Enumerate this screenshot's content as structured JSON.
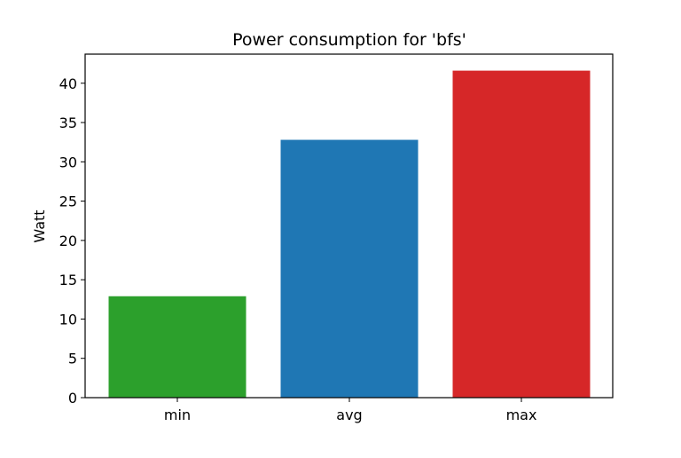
{
  "chart_data": {
    "type": "bar",
    "title": "Power consumption for 'bfs'",
    "xlabel": "",
    "ylabel": "Watt",
    "categories": [
      "min",
      "avg",
      "max"
    ],
    "values": [
      12.9,
      32.8,
      41.6
    ],
    "colors": [
      "#2ca02c",
      "#1f77b4",
      "#d62728"
    ],
    "ylim": [
      0,
      43.7
    ],
    "yticks": [
      0,
      5,
      10,
      15,
      20,
      25,
      30,
      35,
      40
    ],
    "grid": false,
    "legend": "none"
  }
}
